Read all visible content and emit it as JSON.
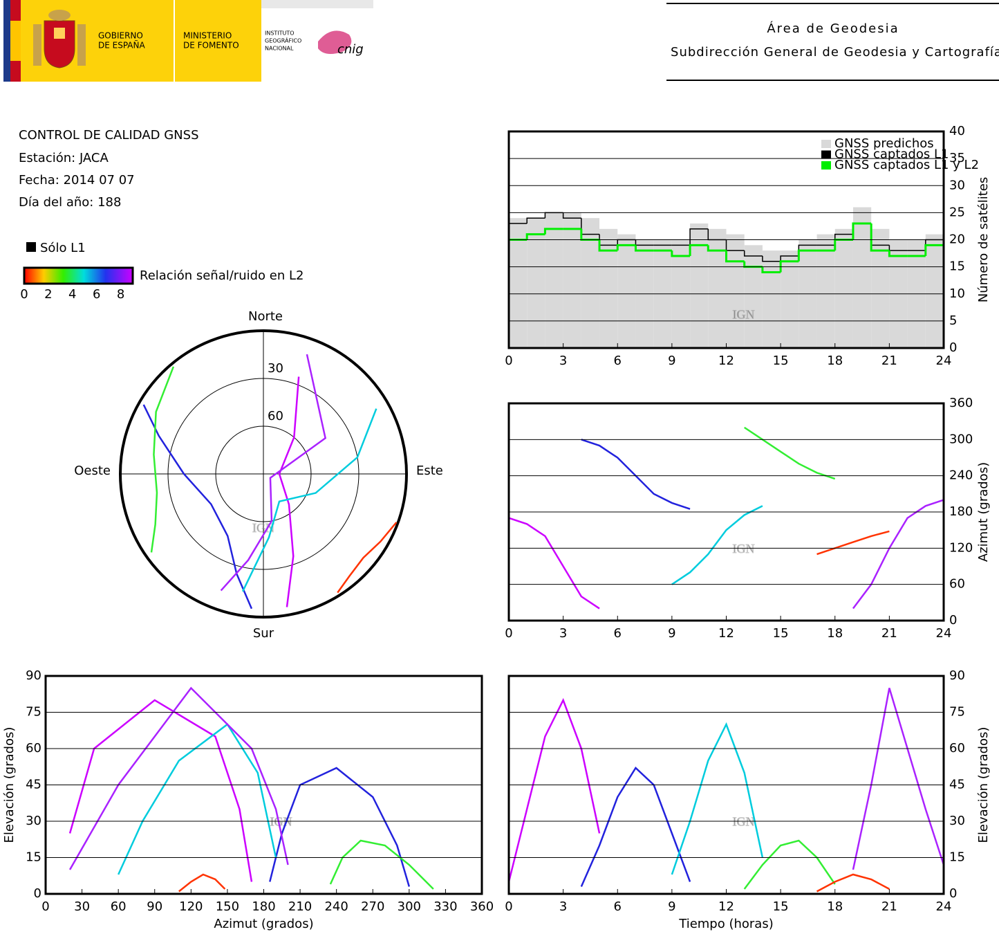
{
  "header": {
    "gov_line1": "GOBIERNO",
    "gov_line2": "DE ESPAÑA",
    "min_line1": "MINISTERIO",
    "min_line2": "DE FOMENTO",
    "ign_line1": "INSTITUTO",
    "ign_line2": "GEOGRÁFICO",
    "ign_line3": "NACIONAL",
    "cnig": "cnig",
    "title": "Área de Geodesia",
    "subtitle": "Subdirección General de Geodesia y Cartografía"
  },
  "info": {
    "title": "CONTROL DE CALIDAD GNSS",
    "station": "Estación: JACA",
    "date": "Fecha: 2014 07 07",
    "doy": "Día del año: 188",
    "l1_only": "Sólo L1"
  },
  "colorbar": {
    "label": "Relación señal/ruido en L2",
    "lim": [
      0,
      9
    ],
    "ticks": [
      0,
      2,
      4,
      6,
      8
    ]
  },
  "watermark": "IGN",
  "chart_data": [
    {
      "type": "step",
      "ylabel": "Número de satélites",
      "xlim": [
        0,
        24
      ],
      "xticks": [
        0,
        3,
        6,
        9,
        12,
        15,
        18,
        21,
        24
      ],
      "ylim": [
        0,
        40
      ],
      "yticks": [
        0,
        5,
        10,
        15,
        20,
        25,
        30,
        35,
        40
      ],
      "x": [
        0,
        1,
        2,
        3,
        4,
        5,
        6,
        7,
        8,
        9,
        10,
        11,
        12,
        13,
        14,
        15,
        16,
        17,
        18,
        19,
        20,
        21,
        22,
        23
      ],
      "series": [
        {
          "name": "GNSS predichos",
          "color": "#d9d9d9",
          "values": [
            24,
            24,
            25,
            25,
            24,
            22,
            21,
            20,
            20,
            20,
            23,
            22,
            21,
            19,
            18,
            18,
            20,
            21,
            22,
            26,
            22,
            20,
            20,
            21
          ]
        },
        {
          "name": "GNSS captados L1",
          "color": "#000000",
          "values": [
            23,
            24,
            25,
            24,
            21,
            19,
            20,
            19,
            19,
            19,
            22,
            20,
            18,
            17,
            16,
            17,
            19,
            19,
            21,
            23,
            19,
            18,
            18,
            20
          ]
        },
        {
          "name": "GNSS captados L1 y L2",
          "color": "#00ee00",
          "values": [
            20,
            21,
            22,
            22,
            20,
            18,
            19,
            18,
            18,
            17,
            19,
            18,
            16,
            15,
            14,
            16,
            18,
            18,
            20,
            23,
            18,
            17,
            17,
            19
          ]
        }
      ]
    },
    {
      "type": "skyplot",
      "north": "Norte",
      "south": "Sur",
      "east": "Este",
      "west": "Oeste",
      "rings": [
        30,
        60
      ],
      "series": [
        {
          "color": "#cc00ff",
          "azimuth": [
            170,
            160,
            140,
            90,
            40,
            20
          ],
          "elevation": [
            5,
            35,
            65,
            80,
            60,
            25
          ]
        },
        {
          "color": "#2222dd",
          "azimuth": [
            300,
            290,
            270,
            240,
            210,
            195,
            185
          ],
          "elevation": [
            3,
            20,
            40,
            52,
            45,
            25,
            5
          ]
        },
        {
          "color": "#00ccdd",
          "azimuth": [
            60,
            80,
            110,
            150,
            175,
            190
          ],
          "elevation": [
            8,
            30,
            55,
            70,
            50,
            15
          ]
        },
        {
          "color": "#33ee33",
          "azimuth": [
            320,
            300,
            280,
            260,
            245,
            235
          ],
          "elevation": [
            2,
            12,
            20,
            22,
            15,
            4
          ]
        },
        {
          "color": "#ff3300",
          "azimuth": [
            110,
            120,
            130,
            140,
            148
          ],
          "elevation": [
            1,
            5,
            8,
            6,
            2
          ]
        },
        {
          "color": "#aa22ff",
          "azimuth": [
            20,
            60,
            120,
            170,
            190,
            200
          ],
          "elevation": [
            10,
            45,
            85,
            60,
            35,
            12
          ]
        }
      ]
    },
    {
      "type": "track",
      "ylabel": "Azimut (grados)",
      "xlim": [
        0,
        24
      ],
      "xticks": [
        0,
        3,
        6,
        9,
        12,
        15,
        18,
        21,
        24
      ],
      "ylim": [
        0,
        360
      ],
      "yticks": [
        0,
        60,
        120,
        180,
        240,
        300,
        360
      ],
      "series": [
        {
          "color": "#cc00ff",
          "x": [
            0,
            1,
            2,
            3,
            4,
            5
          ],
          "values": [
            170,
            160,
            140,
            90,
            40,
            20
          ]
        },
        {
          "color": "#2222dd",
          "x": [
            4,
            5,
            6,
            7,
            8,
            9,
            10
          ],
          "values": [
            300,
            290,
            270,
            240,
            210,
            195,
            185
          ]
        },
        {
          "color": "#00ccdd",
          "x": [
            9,
            10,
            11,
            12,
            13,
            14
          ],
          "values": [
            60,
            80,
            110,
            150,
            175,
            190
          ]
        },
        {
          "color": "#33ee33",
          "x": [
            13,
            14,
            15,
            16,
            17,
            18
          ],
          "values": [
            320,
            300,
            280,
            260,
            245,
            235
          ]
        },
        {
          "color": "#ff3300",
          "x": [
            17,
            18,
            19,
            20,
            21
          ],
          "values": [
            110,
            120,
            130,
            140,
            148
          ]
        },
        {
          "color": "#aa22ff",
          "x": [
            19,
            20,
            21,
            22,
            23,
            24
          ],
          "values": [
            20,
            60,
            120,
            170,
            190,
            200
          ]
        }
      ]
    },
    {
      "type": "track",
      "xlabel": "Azimut (grados)",
      "ylabel": "Elevación (grados)",
      "xlim": [
        0,
        360
      ],
      "xticks": [
        0,
        30,
        60,
        90,
        120,
        150,
        180,
        210,
        240,
        270,
        300,
        330,
        360
      ],
      "ylim": [
        0,
        90
      ],
      "yticks": [
        0,
        15,
        30,
        45,
        60,
        75,
        90
      ],
      "series": [
        {
          "color": "#cc00ff",
          "x": [
            170,
            160,
            140,
            90,
            40,
            20
          ],
          "values": [
            5,
            35,
            65,
            80,
            60,
            25
          ]
        },
        {
          "color": "#2222dd",
          "x": [
            300,
            290,
            270,
            240,
            210,
            195,
            185
          ],
          "values": [
            3,
            20,
            40,
            52,
            45,
            25,
            5
          ]
        },
        {
          "color": "#00ccdd",
          "x": [
            60,
            80,
            110,
            150,
            175,
            190
          ],
          "values": [
            8,
            30,
            55,
            70,
            50,
            15
          ]
        },
        {
          "color": "#33ee33",
          "x": [
            320,
            300,
            280,
            260,
            245,
            235
          ],
          "values": [
            2,
            12,
            20,
            22,
            15,
            4
          ]
        },
        {
          "color": "#ff3300",
          "x": [
            110,
            120,
            130,
            140,
            148
          ],
          "values": [
            1,
            5,
            8,
            6,
            2
          ]
        },
        {
          "color": "#aa22ff",
          "x": [
            20,
            60,
            120,
            170,
            190,
            200
          ],
          "values": [
            10,
            45,
            85,
            60,
            35,
            12
          ]
        }
      ]
    },
    {
      "type": "track",
      "xlabel": "Tiempo (horas)",
      "ylabel": "Elevación (grados)",
      "xlim": [
        0,
        24
      ],
      "xticks": [
        0,
        3,
        6,
        9,
        12,
        15,
        18,
        21,
        24
      ],
      "ylim": [
        0,
        90
      ],
      "yticks": [
        0,
        15,
        30,
        45,
        60,
        75,
        90
      ],
      "series": [
        {
          "color": "#cc00ff",
          "x": [
            0,
            1,
            2,
            3,
            4,
            5
          ],
          "values": [
            5,
            35,
            65,
            80,
            60,
            25
          ]
        },
        {
          "color": "#2222dd",
          "x": [
            4,
            5,
            6,
            7,
            8,
            9,
            10
          ],
          "values": [
            3,
            20,
            40,
            52,
            45,
            25,
            5
          ]
        },
        {
          "color": "#00ccdd",
          "x": [
            9,
            10,
            11,
            12,
            13,
            14
          ],
          "values": [
            8,
            30,
            55,
            70,
            50,
            15
          ]
        },
        {
          "color": "#33ee33",
          "x": [
            13,
            14,
            15,
            16,
            17,
            18
          ],
          "values": [
            2,
            12,
            20,
            22,
            15,
            4
          ]
        },
        {
          "color": "#ff3300",
          "x": [
            17,
            18,
            19,
            20,
            21
          ],
          "values": [
            1,
            5,
            8,
            6,
            2
          ]
        },
        {
          "color": "#aa22ff",
          "x": [
            19,
            20,
            21,
            22,
            23,
            24
          ],
          "values": [
            10,
            45,
            85,
            60,
            35,
            12
          ]
        }
      ]
    }
  ]
}
